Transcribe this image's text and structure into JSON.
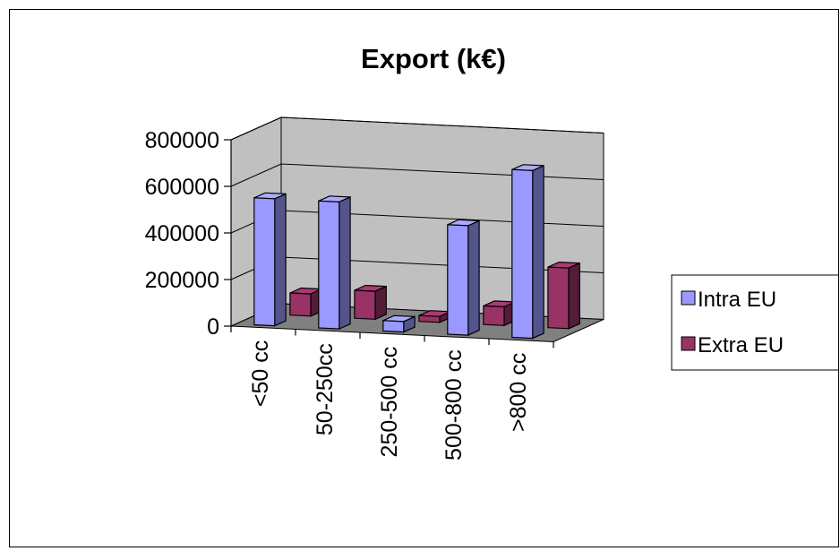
{
  "chart_data": {
    "type": "bar",
    "subtype": "3d-clustered-column",
    "title": "Export (k€)",
    "xlabel": "",
    "ylabel": "",
    "categories": [
      "<50 cc",
      "50-250cc",
      "250-500 cc",
      "500-800 cc",
      ">800 cc"
    ],
    "series": [
      {
        "name": "Intra EU",
        "values": [
          545000,
          545000,
          45000,
          470000,
          720000
        ]
      },
      {
        "name": "Extra EU",
        "values": [
          95000,
          120000,
          25000,
          80000,
          260000
        ]
      }
    ],
    "yticks": [
      "800000",
      "600000",
      "400000",
      "200000",
      "0"
    ],
    "ylim": [
      0,
      800000
    ],
    "grid": true,
    "legend": "right",
    "colors": {
      "Intra EU": "#9999ff",
      "Extra EU": "#993366",
      "back_wall": "#c0c0c0",
      "floor": "#808080"
    }
  }
}
